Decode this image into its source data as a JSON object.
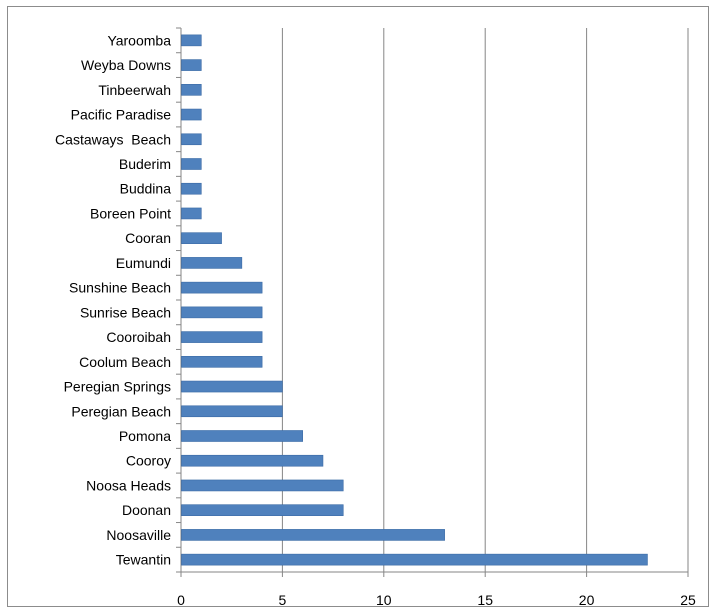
{
  "chart_data": {
    "type": "bar",
    "orientation": "horizontal",
    "title": "",
    "xlabel": "",
    "ylabel": "",
    "categories": [
      "Yaroomba",
      "Weyba Downs",
      "Tinbeerwah",
      "Pacific Paradise",
      "Castaways  Beach",
      "Buderim",
      "Buddina",
      "Boreen Point",
      "Cooran",
      "Eumundi",
      "Sunshine Beach",
      "Sunrise Beach",
      "Cooroibah",
      "Coolum Beach",
      "Peregian Springs",
      "Peregian Beach",
      "Pomona",
      "Cooroy",
      "Noosa Heads",
      "Doonan",
      "Noosaville",
      "Tewantin"
    ],
    "values": [
      1,
      1,
      1,
      1,
      1,
      1,
      1,
      1,
      2,
      3,
      4,
      4,
      4,
      4,
      5,
      5,
      6,
      7,
      8,
      8,
      13,
      23
    ],
    "xlim": [
      0,
      25
    ],
    "xticks": [
      "0",
      "5",
      "10",
      "15",
      "20",
      "25"
    ],
    "grid": "vertical",
    "legend": "none",
    "colors": {
      "bar": "#4f81bd",
      "bar_edge": "#3a6aa5",
      "grid": "#868686",
      "axis": "#868686"
    }
  }
}
